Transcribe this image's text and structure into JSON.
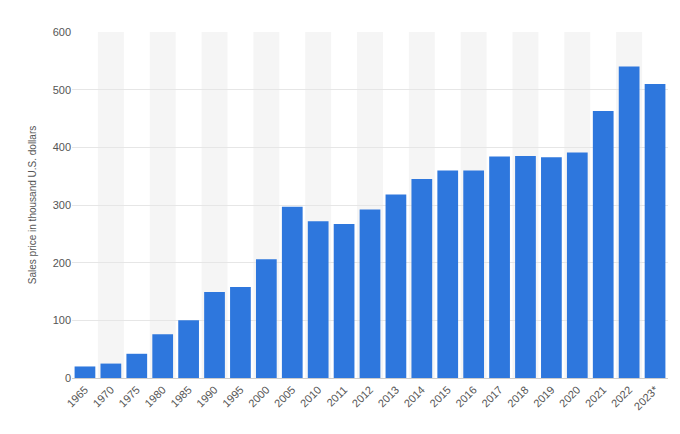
{
  "chart_data": {
    "type": "bar",
    "y_label": "Sales price in thousand U.S. dollars",
    "categories": [
      "1965",
      "1970",
      "1975",
      "1980",
      "1985",
      "1990",
      "1995",
      "2000",
      "2005",
      "2010",
      "2011",
      "2012",
      "2013",
      "2014",
      "2015",
      "2016",
      "2017",
      "2018",
      "2019",
      "2020",
      "2021",
      "2022",
      "2023*"
    ],
    "values": [
      20,
      25,
      42,
      76,
      100,
      149,
      158,
      206,
      297,
      272,
      267,
      292,
      318,
      345,
      360,
      360,
      384,
      385,
      383,
      391,
      463,
      540,
      510
    ],
    "color": "#2e77dd",
    "ylim": [
      0,
      600
    ],
    "yticks": [
      0,
      100,
      200,
      300,
      400,
      500,
      600
    ],
    "grid": true
  }
}
